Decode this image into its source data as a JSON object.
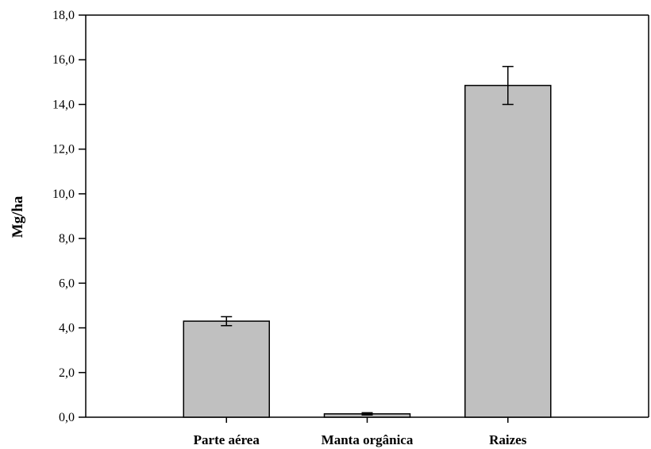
{
  "chart_data": {
    "type": "bar",
    "title": "",
    "xlabel": "",
    "ylabel": "Mg/ha",
    "ylim": [
      0,
      18
    ],
    "yticks": [
      0,
      2,
      4,
      6,
      8,
      10,
      12,
      14,
      16,
      18
    ],
    "ytick_labels": [
      "0,0",
      "2,0",
      "4,0",
      "6,0",
      "8,0",
      "10,0",
      "12,0",
      "14,0",
      "16,0",
      "18,0"
    ],
    "categories": [
      "Parte aérea",
      "Manta orgânica",
      "Raizes"
    ],
    "values": [
      4.3,
      0.15,
      14.85
    ],
    "error": [
      0.2,
      0.05,
      0.85
    ],
    "bar_color": "#c0c0c0",
    "grid": false
  }
}
